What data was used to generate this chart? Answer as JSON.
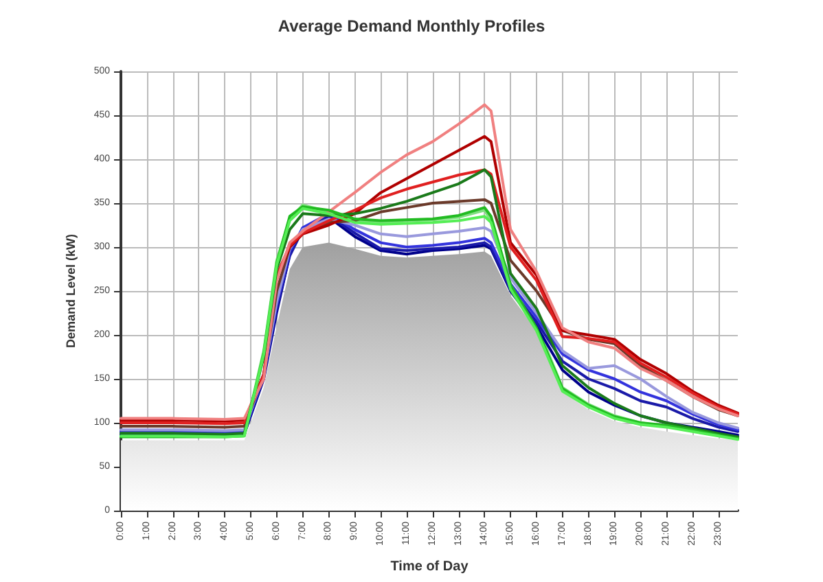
{
  "chart_data": {
    "type": "line",
    "title": "Average Demand Monthly Profiles",
    "xlabel": "Time of Day",
    "ylabel": "Demand Level (kW)",
    "x": [
      0,
      2,
      4,
      4.75,
      5.5,
      6,
      6.5,
      7,
      8,
      9,
      10,
      11,
      12,
      13,
      14,
      14.25,
      15,
      16,
      17,
      18,
      19,
      20,
      21,
      22,
      23,
      23.75
    ],
    "xlim": [
      0,
      23.75
    ],
    "xticks": [
      {
        "value": 0,
        "label": "0:00"
      },
      {
        "value": 1,
        "label": "1:00"
      },
      {
        "value": 2,
        "label": "2:00"
      },
      {
        "value": 3,
        "label": "3:00"
      },
      {
        "value": 4,
        "label": "4:00"
      },
      {
        "value": 5,
        "label": "5:00"
      },
      {
        "value": 6,
        "label": "6:00"
      },
      {
        "value": 7,
        "label": "7:00"
      },
      {
        "value": 8,
        "label": "8:00"
      },
      {
        "value": 9,
        "label": "9:00"
      },
      {
        "value": 10,
        "label": "10:00"
      },
      {
        "value": 11,
        "label": "11:00"
      },
      {
        "value": 12,
        "label": "12:00"
      },
      {
        "value": 13,
        "label": "13:00"
      },
      {
        "value": 14,
        "label": "14:00"
      },
      {
        "value": 15,
        "label": "15:00"
      },
      {
        "value": 16,
        "label": "16:00"
      },
      {
        "value": 17,
        "label": "17:00"
      },
      {
        "value": 18,
        "label": "18:00"
      },
      {
        "value": 19,
        "label": "19:00"
      },
      {
        "value": 20,
        "label": "20:00"
      },
      {
        "value": 21,
        "label": "21:00"
      },
      {
        "value": 22,
        "label": "22:00"
      },
      {
        "value": 23,
        "label": "23:00"
      }
    ],
    "ylim": [
      0,
      500
    ],
    "yticks": [
      0,
      50,
      100,
      150,
      200,
      250,
      300,
      350,
      400,
      450,
      500
    ],
    "grid": true,
    "marker": "none",
    "line_style": "solid",
    "series": [
      {
        "type": "area",
        "color": "#a0a0a0",
        "values": [
          80,
          80,
          80,
          80,
          140,
          210,
          275,
          300,
          305,
          298,
          290,
          288,
          290,
          292,
          295,
          290,
          245,
          205,
          135,
          115,
          102,
          95,
          90,
          86,
          82,
          80
        ]
      },
      {
        "color": "#7fdf7f",
        "values": [
          86,
          85,
          85,
          86,
          182,
          285,
          332,
          348,
          340,
          330,
          328,
          330,
          331,
          334,
          342,
          330,
          258,
          212,
          140,
          121,
          108,
          100,
          96,
          91,
          86,
          82
        ]
      },
      {
        "color": "#00008b",
        "values": [
          86,
          86,
          86,
          87,
          150,
          226,
          292,
          322,
          334,
          312,
          296,
          292,
          296,
          298,
          302,
          298,
          250,
          210,
          160,
          135,
          120,
          108,
          100,
          95,
          90,
          86
        ]
      },
      {
        "color": "#1a1aa8",
        "values": [
          88,
          88,
          87,
          88,
          152,
          230,
          290,
          320,
          336,
          316,
          298,
          296,
          298,
          300,
          305,
          300,
          252,
          215,
          170,
          150,
          139,
          125,
          118,
          105,
          95,
          90
        ]
      },
      {
        "color": "#3333dd",
        "values": [
          90,
          90,
          89,
          90,
          155,
          235,
          295,
          322,
          338,
          320,
          305,
          300,
          302,
          305,
          310,
          305,
          258,
          220,
          178,
          160,
          150,
          135,
          125,
          110,
          98,
          92
        ]
      },
      {
        "color": "#9999dd",
        "values": [
          92,
          92,
          91,
          92,
          156,
          238,
          298,
          320,
          332,
          325,
          315,
          312,
          315,
          318,
          322,
          318,
          265,
          225,
          182,
          162,
          165,
          150,
          130,
          112,
          100,
          94
        ]
      },
      {
        "color": "#6b3a2a",
        "values": [
          96,
          96,
          95,
          96,
          155,
          250,
          300,
          316,
          328,
          330,
          340,
          345,
          350,
          352,
          354,
          350,
          285,
          250,
          205,
          195,
          190,
          165,
          148,
          130,
          115,
          108
        ]
      },
      {
        "color": "#b00000",
        "values": [
          103,
          103,
          102,
          103,
          155,
          265,
          300,
          315,
          325,
          338,
          362,
          378,
          394,
          410,
          426,
          420,
          305,
          268,
          205,
          200,
          195,
          172,
          156,
          136,
          120,
          111
        ]
      },
      {
        "color": "#e02020",
        "values": [
          100,
          100,
          99,
          100,
          154,
          268,
          302,
          316,
          330,
          342,
          356,
          366,
          374,
          382,
          388,
          383,
          300,
          262,
          198,
          196,
          192,
          168,
          152,
          134,
          118,
          110
        ]
      },
      {
        "color": "#f08080",
        "values": [
          105,
          105,
          104,
          105,
          150,
          262,
          305,
          318,
          340,
          362,
          385,
          405,
          420,
          440,
          462,
          455,
          320,
          272,
          208,
          192,
          185,
          162,
          148,
          130,
          116,
          108
        ]
      },
      {
        "color": "#1a7a1a",
        "values": [
          88,
          88,
          87,
          88,
          175,
          275,
          320,
          338,
          336,
          338,
          344,
          352,
          362,
          372,
          388,
          380,
          270,
          230,
          165,
          140,
          122,
          108,
          100,
          94,
          88,
          84
        ]
      },
      {
        "color": "#22bb22",
        "values": [
          84,
          84,
          84,
          85,
          180,
          282,
          335,
          346,
          342,
          332,
          330,
          331,
          332,
          336,
          345,
          335,
          257,
          208,
          139,
          120,
          107,
          100,
          97,
          92,
          86,
          82
        ]
      },
      {
        "color": "#55ee55",
        "values": [
          85,
          85,
          84,
          85,
          178,
          280,
          330,
          344,
          338,
          328,
          326,
          327,
          328,
          330,
          335,
          328,
          252,
          205,
          136,
          118,
          105,
          98,
          95,
          90,
          85,
          81
        ]
      }
    ]
  }
}
